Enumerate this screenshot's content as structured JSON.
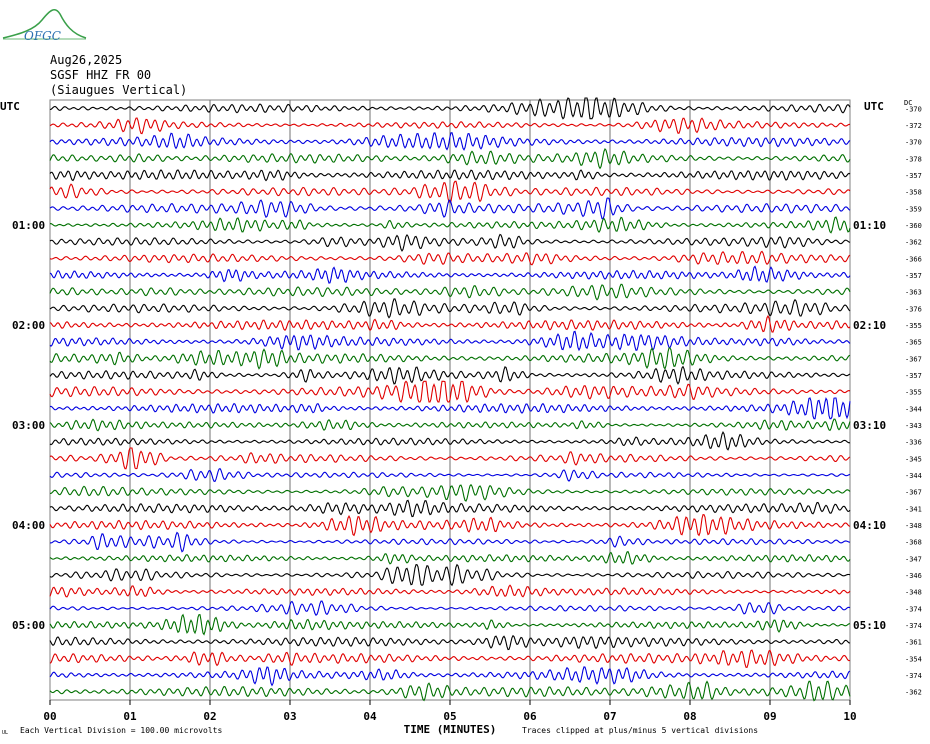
{
  "logo": {
    "text": "OFGC",
    "color_curve": "#3aa04a",
    "color_text": "#2a6fb0"
  },
  "header": {
    "date": "Aug26,2025",
    "station": "SGSF HHZ FR 00",
    "location": "(Siaugues Vertical)"
  },
  "chart_data": {
    "type": "line",
    "title": "SGSF HHZ FR 00 (Siaugues Vertical)",
    "xlabel": "TIME (MINUTES)",
    "x_ticks": [
      "00",
      "01",
      "02",
      "03",
      "04",
      "05",
      "06",
      "07",
      "08",
      "09",
      "10"
    ],
    "xlim": [
      0,
      10
    ],
    "left_axis_title": "UTC",
    "right_axis_title": "UTC",
    "dc_label": "DC",
    "left_time_labels": [
      {
        "row": 7,
        "label": "01:00"
      },
      {
        "row": 13,
        "label": "02:00"
      },
      {
        "row": 19,
        "label": "03:00"
      },
      {
        "row": 25,
        "label": "04:00"
      },
      {
        "row": 31,
        "label": "05:00"
      }
    ],
    "right_time_labels": [
      {
        "row": 7,
        "label": "01:10"
      },
      {
        "row": 13,
        "label": "02:10"
      },
      {
        "row": 19,
        "label": "03:10"
      },
      {
        "row": 25,
        "label": "04:10"
      },
      {
        "row": 31,
        "label": "05:10"
      }
    ],
    "trace_colors": [
      "#000000",
      "#e00000",
      "#0000e0",
      "#007000"
    ],
    "dc_offsets": [
      "-370",
      "-372",
      "-370",
      "-378",
      "-357",
      "-358",
      "-359",
      "-360",
      "-362",
      "-366",
      "-357",
      "-363",
      "-376",
      "-355",
      "-365",
      "-367",
      "-357",
      "-355",
      "-344",
      "-343",
      "-336",
      "-345",
      "-344",
      "-367",
      "-341",
      "-348",
      "-368",
      "-347",
      "-346",
      "-348",
      "-374",
      "-374",
      "-361",
      "-354",
      "-374",
      "-362"
    ],
    "amplitude_scale": "Each Vertical Division =  100.00 microvolts",
    "clip_note": "Traces clipped at plus/minus 5 vertical divisions",
    "corner_mark": "UL"
  }
}
